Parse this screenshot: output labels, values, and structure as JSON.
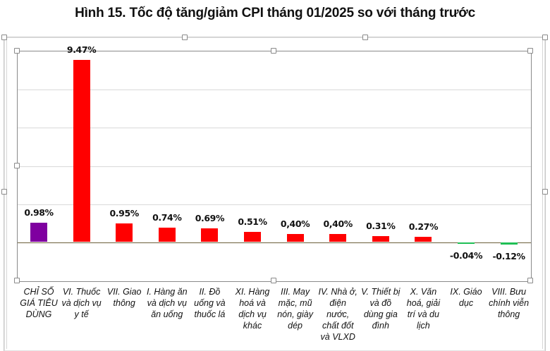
{
  "title": "Hình 15. Tốc độ tăng/giảm CPI tháng 01/2025 so với tháng trước",
  "colors": {
    "cpi": "#7f00a0",
    "increase": "#ff0000",
    "decrease": "#1fbf55",
    "gridline": "#d9d9d9",
    "baseline": "#6b5f3a"
  },
  "chart_data": {
    "type": "bar",
    "title": "Hình 15. Tốc độ tăng/giảm CPI tháng 01/2025 so với tháng trước",
    "xlabel": "",
    "ylabel": "",
    "ylim": [
      -2,
      10
    ],
    "grid": true,
    "legend": "none",
    "categories": [
      "CHỈ SỐ GIÁ TIÊU DÙNG",
      "VI. Thuốc và dịch vụ y tế",
      "VII. Giao thông",
      "I. Hàng ăn và dịch vụ ăn uống",
      "II. Đồ uống và thuốc lá",
      "XI. Hàng hoá và dịch vụ khác",
      "III. May mặc, mũ nón, giày dép",
      "IV. Nhà ở, điện nước, chất đốt và VLXD",
      "V. Thiết bị và đồ dùng gia đình",
      "X. Văn hoá, giải trí và du lịch",
      "IX. Giáo dục",
      "VIII. Bưu chính viễn thông"
    ],
    "values": [
      0.98,
      9.47,
      0.95,
      0.74,
      0.69,
      0.51,
      0.4,
      0.4,
      0.31,
      0.27,
      -0.04,
      -0.12
    ],
    "labels": [
      "0.98%",
      "9.47%",
      "0.95%",
      "0.74%",
      "0.69%",
      "0.51%",
      "0,40%",
      "0,40%",
      "0.31%",
      "0.27%",
      "-0.04%",
      "-0.12%"
    ],
    "bar_colors": [
      "#7f00a0",
      "#ff0000",
      "#ff0000",
      "#ff0000",
      "#ff0000",
      "#ff0000",
      "#ff0000",
      "#ff0000",
      "#ff0000",
      "#ff0000",
      "#1fbf55",
      "#1fbf55"
    ]
  },
  "category_lines": [
    [
      "CHỈ SỐ",
      "GIÁ TIÊU",
      "DÙNG"
    ],
    [
      "VI. Thuốc",
      "và dịch vụ",
      "y tế"
    ],
    [
      "VII. Giao",
      "thông"
    ],
    [
      "I. Hàng ăn",
      "và dịch vụ",
      "ăn uống"
    ],
    [
      "II. Đồ",
      "uống và",
      "thuốc lá"
    ],
    [
      "XI. Hàng",
      "hoá và",
      "dịch vụ",
      "khác"
    ],
    [
      "III. May",
      "mặc, mũ",
      "nón, giày",
      "dép"
    ],
    [
      "IV. Nhà ở,",
      "điện",
      "nước,",
      "chất đốt",
      "và VLXD"
    ],
    [
      "V. Thiết bị",
      "và đồ",
      "dùng gia",
      "đình"
    ],
    [
      "X. Văn",
      "hoá, giải",
      "trí và du",
      "lịch"
    ],
    [
      "IX. Giáo",
      "dục"
    ],
    [
      "VIII. Bưu",
      "chính viễn",
      "thông"
    ]
  ]
}
